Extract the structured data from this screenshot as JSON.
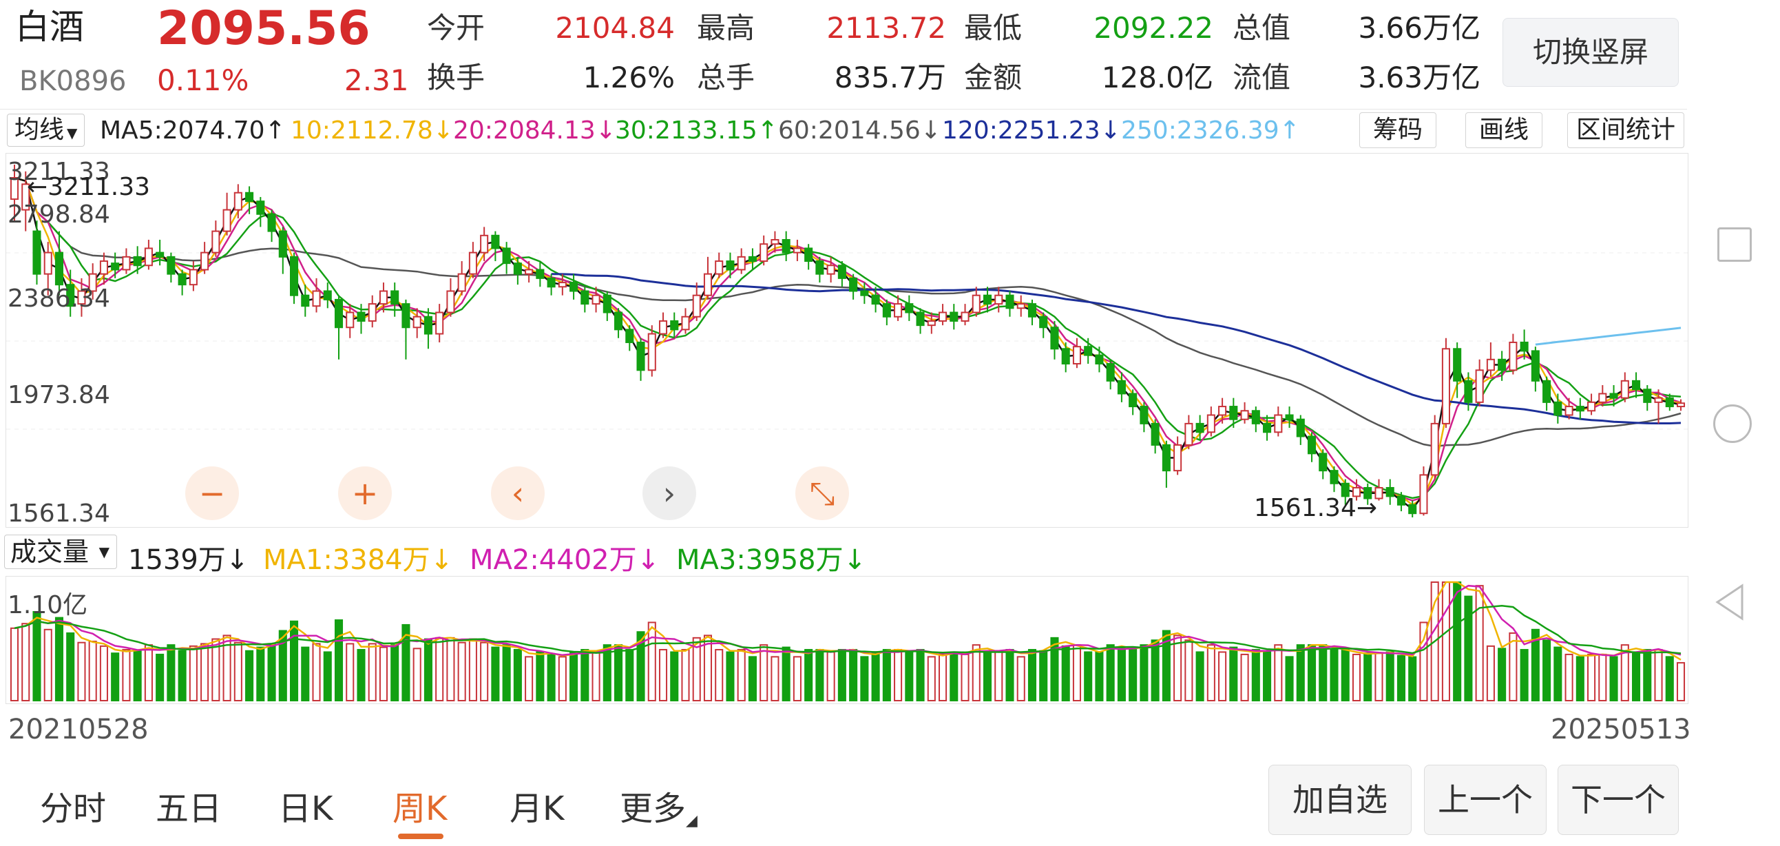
{
  "header": {
    "name": "白酒",
    "price": "2095.56",
    "code": "BK0896",
    "change_pct": "0.11%",
    "change": "2.31",
    "quote": [
      {
        "label": "今开",
        "value": "2104.84",
        "color": "#d62b2b"
      },
      {
        "label": "最高",
        "value": "2113.72",
        "color": "#d62b2b"
      },
      {
        "label": "最低",
        "value": "2092.22",
        "color": "#14a014"
      },
      {
        "label": "总值",
        "value": "3.66万亿",
        "color": "#222222"
      },
      {
        "label": "换手",
        "value": "1.26%",
        "color": "#222222"
      },
      {
        "label": "总手",
        "value": "835.7万",
        "color": "#222222"
      },
      {
        "label": "金额",
        "value": "128.0亿",
        "color": "#222222"
      },
      {
        "label": "流值",
        "value": "3.63万亿",
        "color": "#222222"
      }
    ],
    "switch_button": "切换竖屏"
  },
  "ma_bar": {
    "selector": "均线",
    "items": [
      {
        "text": "MA5:2074.70↑",
        "color": "#222222"
      },
      {
        "text": "10:2112.78↓",
        "color": "#f0b400"
      },
      {
        "text": "20:2084.13↓",
        "color": "#d0208a"
      },
      {
        "text": "30:2133.15↑",
        "color": "#14a014"
      },
      {
        "text": "60:2014.56↓",
        "color": "#555555"
      },
      {
        "text": "120:2251.23↓",
        "color": "#1c2f99"
      },
      {
        "text": "250:2326.39↑",
        "color": "#6cc0ee"
      }
    ],
    "tools": [
      "筹码",
      "画线",
      "区间统计"
    ]
  },
  "chart_data": {
    "type": "candlestick",
    "y_ticks": [
      "3211.33",
      "2798.84",
      "2386.34",
      "1973.84",
      "1561.34"
    ],
    "ylim": [
      1561.34,
      3211.33
    ],
    "high_marker": "3211.33",
    "low_marker": "1561.34",
    "start_date": "20210528",
    "end_date": "20250513",
    "candles": [
      [
        3050,
        3150,
        3211.33,
        2950
      ],
      [
        3000,
        3120,
        3180,
        2900
      ],
      [
        2900,
        2700,
        2950,
        2650
      ],
      [
        2700,
        2800,
        2850,
        2600
      ],
      [
        2800,
        2650,
        2900,
        2600
      ],
      [
        2650,
        2550,
        2720,
        2500
      ],
      [
        2560,
        2620,
        2680,
        2500
      ],
      [
        2620,
        2700,
        2750,
        2580
      ],
      [
        2700,
        2760,
        2800,
        2650
      ],
      [
        2750,
        2720,
        2800,
        2680
      ],
      [
        2720,
        2780,
        2820,
        2700
      ],
      [
        2780,
        2740,
        2830,
        2700
      ],
      [
        2740,
        2820,
        2860,
        2720
      ],
      [
        2800,
        2780,
        2860,
        2740
      ],
      [
        2780,
        2700,
        2800,
        2660
      ],
      [
        2700,
        2650,
        2720,
        2600
      ],
      [
        2650,
        2720,
        2760,
        2620
      ],
      [
        2720,
        2800,
        2850,
        2700
      ],
      [
        2800,
        2900,
        2950,
        2780
      ],
      [
        2900,
        3000,
        3080,
        2880
      ],
      [
        3000,
        3080,
        3120,
        2960
      ],
      [
        3080,
        3040,
        3110,
        2980
      ],
      [
        3040,
        2980,
        3060,
        2920
      ],
      [
        2980,
        2900,
        3000,
        2850
      ],
      [
        2900,
        2780,
        2920,
        2700
      ],
      [
        2780,
        2600,
        2800,
        2560
      ],
      [
        2600,
        2550,
        2650,
        2500
      ],
      [
        2550,
        2620,
        2680,
        2520
      ],
      [
        2620,
        2580,
        2660,
        2540
      ],
      [
        2580,
        2450,
        2600,
        2300
      ],
      [
        2450,
        2520,
        2560,
        2400
      ],
      [
        2520,
        2480,
        2560,
        2420
      ],
      [
        2480,
        2560,
        2600,
        2450
      ],
      [
        2560,
        2620,
        2660,
        2520
      ],
      [
        2620,
        2560,
        2660,
        2500
      ],
      [
        2560,
        2450,
        2580,
        2300
      ],
      [
        2450,
        2500,
        2540,
        2400
      ],
      [
        2500,
        2420,
        2540,
        2350
      ],
      [
        2420,
        2520,
        2560,
        2380
      ],
      [
        2520,
        2620,
        2680,
        2500
      ],
      [
        2620,
        2700,
        2760,
        2600
      ],
      [
        2700,
        2800,
        2850,
        2680
      ],
      [
        2800,
        2880,
        2920,
        2760
      ],
      [
        2880,
        2820,
        2900,
        2760
      ],
      [
        2820,
        2750,
        2850,
        2700
      ],
      [
        2750,
        2700,
        2780,
        2650
      ],
      [
        2700,
        2720,
        2760,
        2660
      ],
      [
        2720,
        2680,
        2760,
        2640
      ],
      [
        2680,
        2640,
        2700,
        2600
      ],
      [
        2640,
        2660,
        2700,
        2600
      ],
      [
        2660,
        2620,
        2700,
        2580
      ],
      [
        2620,
        2560,
        2640,
        2520
      ],
      [
        2560,
        2600,
        2640,
        2520
      ],
      [
        2600,
        2520,
        2620,
        2480
      ],
      [
        2520,
        2440,
        2540,
        2400
      ],
      [
        2440,
        2380,
        2460,
        2340
      ],
      [
        2380,
        2250,
        2400,
        2200
      ],
      [
        2250,
        2420,
        2460,
        2220
      ],
      [
        2420,
        2480,
        2520,
        2400
      ],
      [
        2480,
        2440,
        2520,
        2400
      ],
      [
        2440,
        2500,
        2540,
        2420
      ],
      [
        2500,
        2600,
        2660,
        2480
      ],
      [
        2600,
        2700,
        2780,
        2580
      ],
      [
        2700,
        2760,
        2800,
        2680
      ],
      [
        2760,
        2720,
        2800,
        2680
      ],
      [
        2720,
        2780,
        2820,
        2700
      ],
      [
        2780,
        2760,
        2820,
        2720
      ],
      [
        2760,
        2840,
        2880,
        2740
      ],
      [
        2840,
        2860,
        2900,
        2800
      ],
      [
        2860,
        2800,
        2900,
        2760
      ],
      [
        2800,
        2820,
        2860,
        2760
      ],
      [
        2820,
        2760,
        2840,
        2720
      ],
      [
        2760,
        2700,
        2780,
        2660
      ],
      [
        2700,
        2740,
        2780,
        2660
      ],
      [
        2740,
        2680,
        2760,
        2640
      ],
      [
        2680,
        2620,
        2700,
        2580
      ],
      [
        2620,
        2600,
        2660,
        2560
      ],
      [
        2600,
        2560,
        2640,
        2520
      ],
      [
        2560,
        2500,
        2580,
        2460
      ],
      [
        2500,
        2560,
        2600,
        2480
      ],
      [
        2560,
        2520,
        2600,
        2480
      ],
      [
        2520,
        2460,
        2540,
        2420
      ],
      [
        2460,
        2480,
        2520,
        2420
      ],
      [
        2480,
        2520,
        2560,
        2460
      ],
      [
        2520,
        2480,
        2560,
        2440
      ],
      [
        2480,
        2520,
        2560,
        2460
      ],
      [
        2520,
        2600,
        2640,
        2500
      ],
      [
        2600,
        2560,
        2640,
        2520
      ],
      [
        2560,
        2600,
        2640,
        2520
      ],
      [
        2600,
        2540,
        2620,
        2500
      ],
      [
        2540,
        2560,
        2600,
        2500
      ],
      [
        2560,
        2500,
        2580,
        2460
      ],
      [
        2500,
        2450,
        2520,
        2400
      ],
      [
        2450,
        2350,
        2480,
        2300
      ],
      [
        2350,
        2280,
        2380,
        2240
      ],
      [
        2280,
        2360,
        2400,
        2260
      ],
      [
        2360,
        2320,
        2400,
        2280
      ],
      [
        2320,
        2280,
        2360,
        2240
      ],
      [
        2280,
        2200,
        2300,
        2160
      ],
      [
        2200,
        2140,
        2240,
        2100
      ],
      [
        2140,
        2080,
        2160,
        2040
      ],
      [
        2080,
        2000,
        2100,
        1960
      ],
      [
        2000,
        1900,
        2020,
        1860
      ],
      [
        1900,
        1780,
        1920,
        1700
      ],
      [
        1780,
        1900,
        1940,
        1760
      ],
      [
        1900,
        2000,
        2040,
        1880
      ],
      [
        2000,
        1960,
        2040,
        1920
      ],
      [
        1960,
        2040,
        2080,
        1940
      ],
      [
        2040,
        2080,
        2120,
        2000
      ],
      [
        2080,
        2020,
        2120,
        1980
      ],
      [
        2020,
        2060,
        2100,
        2000
      ],
      [
        2060,
        2000,
        2080,
        1960
      ],
      [
        2000,
        1960,
        2040,
        1920
      ],
      [
        1960,
        2040,
        2080,
        1940
      ],
      [
        2040,
        2020,
        2080,
        1980
      ],
      [
        2020,
        1940,
        2040,
        1900
      ],
      [
        1940,
        1860,
        1960,
        1820
      ],
      [
        1860,
        1780,
        1880,
        1740
      ],
      [
        1780,
        1720,
        1800,
        1680
      ],
      [
        1720,
        1660,
        1740,
        1620
      ],
      [
        1660,
        1700,
        1740,
        1640
      ],
      [
        1700,
        1650,
        1720,
        1620
      ],
      [
        1650,
        1700,
        1740,
        1640
      ],
      [
        1700,
        1660,
        1740,
        1620
      ],
      [
        1660,
        1620,
        1680,
        1590
      ],
      [
        1620,
        1580,
        1640,
        1561.34
      ],
      [
        1580,
        1760,
        1800,
        1570
      ],
      [
        1760,
        2000,
        2040,
        1740
      ],
      [
        2000,
        2350,
        2400,
        1980
      ],
      [
        2350,
        2200,
        2380,
        2120
      ],
      [
        2200,
        2100,
        2240,
        2060
      ],
      [
        2100,
        2250,
        2300,
        2080
      ],
      [
        2250,
        2300,
        2380,
        2220
      ],
      [
        2300,
        2250,
        2340,
        2200
      ],
      [
        2250,
        2380,
        2420,
        2230
      ],
      [
        2380,
        2340,
        2440,
        2300
      ],
      [
        2340,
        2200,
        2360,
        2150
      ],
      [
        2200,
        2100,
        2220,
        2060
      ],
      [
        2100,
        2040,
        2140,
        2000
      ],
      [
        2040,
        2080,
        2120,
        2020
      ],
      [
        2080,
        2060,
        2120,
        2020
      ],
      [
        2060,
        2100,
        2140,
        2040
      ],
      [
        2100,
        2140,
        2180,
        2080
      ],
      [
        2140,
        2120,
        2180,
        2080
      ],
      [
        2120,
        2200,
        2240,
        2100
      ],
      [
        2200,
        2160,
        2240,
        2120
      ],
      [
        2160,
        2100,
        2180,
        2060
      ],
      [
        2100,
        2120,
        2160,
        2000
      ],
      [
        2120,
        2080,
        2140,
        2060
      ],
      [
        2080,
        2095.56,
        2113.72,
        2060
      ]
    ]
  },
  "chart_controls": [
    "−",
    "+",
    "‹",
    "›",
    "⤡"
  ],
  "volume": {
    "selector": "成交量",
    "current": "1539万↓",
    "items": [
      {
        "text": "MA1:3384万↓",
        "color": "#f0b400"
      },
      {
        "text": "MA2:4402万↓",
        "color": "#d020b0"
      },
      {
        "text": "MA3:3958万↓",
        "color": "#14a014"
      }
    ],
    "ymax_label": "1.10亿"
  },
  "periods": [
    "分时",
    "五日",
    "日K",
    "周K",
    "月K",
    "更多"
  ],
  "active_period": "周K",
  "bottom_buttons": [
    "加自选",
    "上一个",
    "下一个"
  ]
}
